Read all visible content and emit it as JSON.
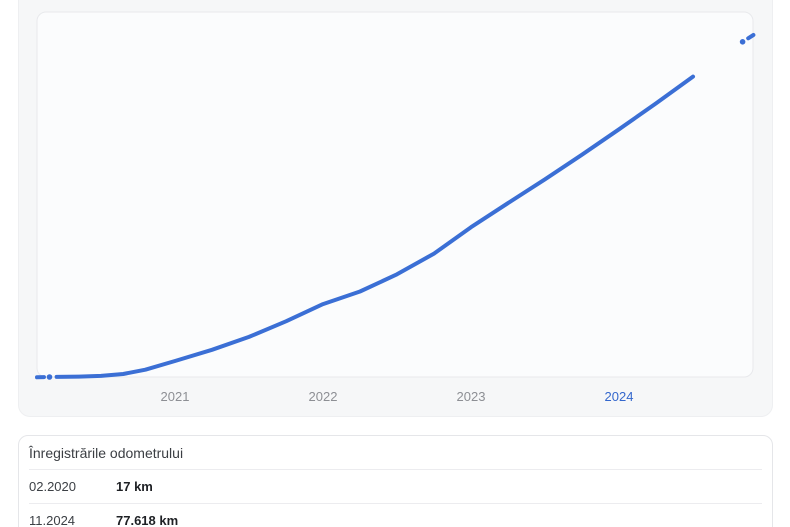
{
  "chart_data": {
    "type": "line",
    "title": "",
    "xlabel": "",
    "ylabel": "",
    "x_ticks": [
      {
        "label": "2021",
        "active": false
      },
      {
        "label": "2022",
        "active": false
      },
      {
        "label": "2023",
        "active": false
      },
      {
        "label": "2024",
        "active": true
      }
    ],
    "xlim": [
      2020.0,
      2025.0
    ],
    "ylim_km": [
      0,
      80500
    ],
    "grid": false,
    "legend": false,
    "line_color": "#3b6fd5",
    "line_style": "solid with dotted extrapolation at both ends",
    "series": [
      {
        "name": "odometer-km",
        "points": [
          [
            2020.12,
            17
          ],
          [
            2020.2,
            30
          ],
          [
            2020.35,
            90
          ],
          [
            2020.5,
            250
          ],
          [
            2020.65,
            700
          ],
          [
            2020.8,
            1700
          ],
          [
            2021.0,
            3700
          ],
          [
            2021.25,
            6300
          ],
          [
            2021.5,
            9300
          ],
          [
            2021.75,
            12900
          ],
          [
            2022.0,
            16900
          ],
          [
            2022.25,
            19800
          ],
          [
            2022.5,
            23800
          ],
          [
            2022.75,
            28600
          ],
          [
            2023.0,
            34700
          ],
          [
            2023.25,
            40300
          ],
          [
            2023.5,
            45800
          ],
          [
            2023.75,
            51500
          ],
          [
            2024.0,
            57400
          ],
          [
            2024.25,
            63400
          ],
          [
            2024.5,
            69600
          ],
          [
            2024.83,
            77618
          ]
        ]
      }
    ],
    "records": [
      {
        "date": "02.2020",
        "km": 17
      },
      {
        "date": "11.2024",
        "km": 77618
      }
    ]
  },
  "table": {
    "title": "Înregistrările odometrului",
    "rows": [
      {
        "date": "02.2020",
        "value": "17 km"
      },
      {
        "date": "11.2024",
        "value": "77.618 km"
      }
    ]
  },
  "colors": {
    "line": "#3b6fd5",
    "active_tick": "#3467cd",
    "tick": "#8d8f94",
    "panel_bg": "#f6f7f8",
    "plot_bg": "#fbfcfd",
    "plot_border": "#e8e9ec"
  }
}
